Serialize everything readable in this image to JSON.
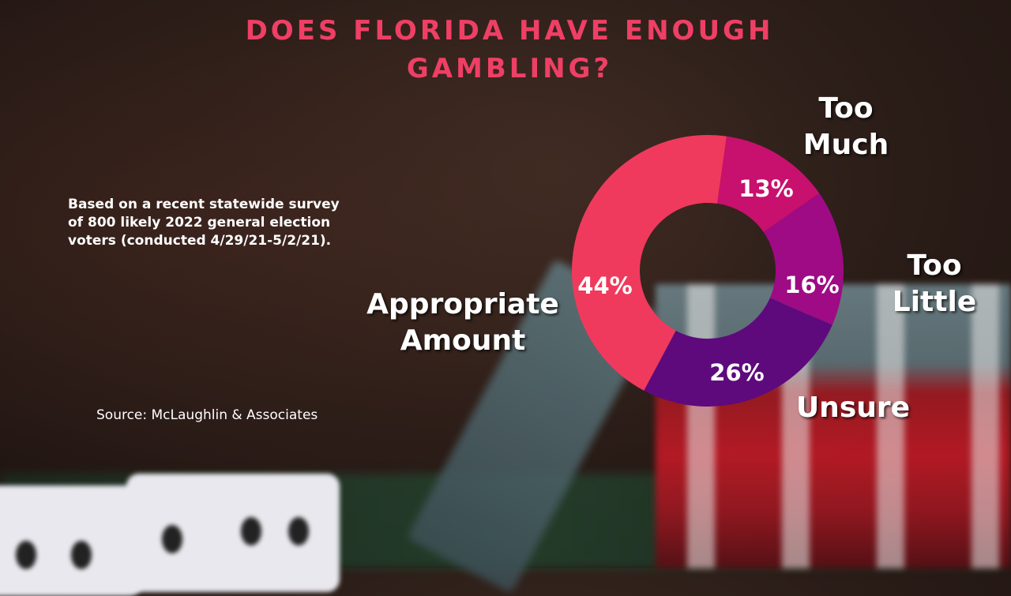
{
  "title": {
    "line1": "DOES FLORIDA HAVE ENOUGH",
    "line2": "GAMBLING?"
  },
  "subtitle": {
    "line1": "Based on a recent statewide survey",
    "line2": "of 800 likely 2022 general election",
    "line3": "voters (conducted 4/29/21-5/2/21)."
  },
  "source": "Source: McLaughlin & Associates",
  "colors": {
    "title": "#ef3f65",
    "appropriate_amount": "#ef3a5d",
    "too_much": "#c8106e",
    "too_little": "#9e0b84",
    "unsure": "#5e0a7c"
  },
  "labels": {
    "too_much": {
      "line1": "Too",
      "line2": "Much"
    },
    "too_little": {
      "line1": "Too",
      "line2": "Little"
    },
    "unsure": {
      "line1": "Unsure"
    },
    "appropriate_amount": {
      "line1": "Appropriate",
      "line2": "Amount"
    }
  },
  "slice_labels": {
    "too_much": "13%",
    "too_little": "16%",
    "unsure": "26%",
    "appropriate_amount": "44%"
  },
  "chart_data": {
    "type": "pie",
    "variant": "donut",
    "title": "DOES FLORIDA HAVE ENOUGH GAMBLING?",
    "categories": [
      "Too Much",
      "Too Little",
      "Unsure",
      "Appropriate Amount"
    ],
    "values": [
      13,
      16,
      26,
      44
    ],
    "unit": "%",
    "colors": [
      "#c8106e",
      "#9e0b84",
      "#5e0a7c",
      "#ef3a5d"
    ],
    "start_angle_deg": 8,
    "direction": "clockwise",
    "legend": "none (direct labels)",
    "note": "Based on a recent statewide survey of 800 likely 2022 general election voters (conducted 4/29/21-5/2/21).",
    "source": "Source: McLaughlin & Associates"
  }
}
